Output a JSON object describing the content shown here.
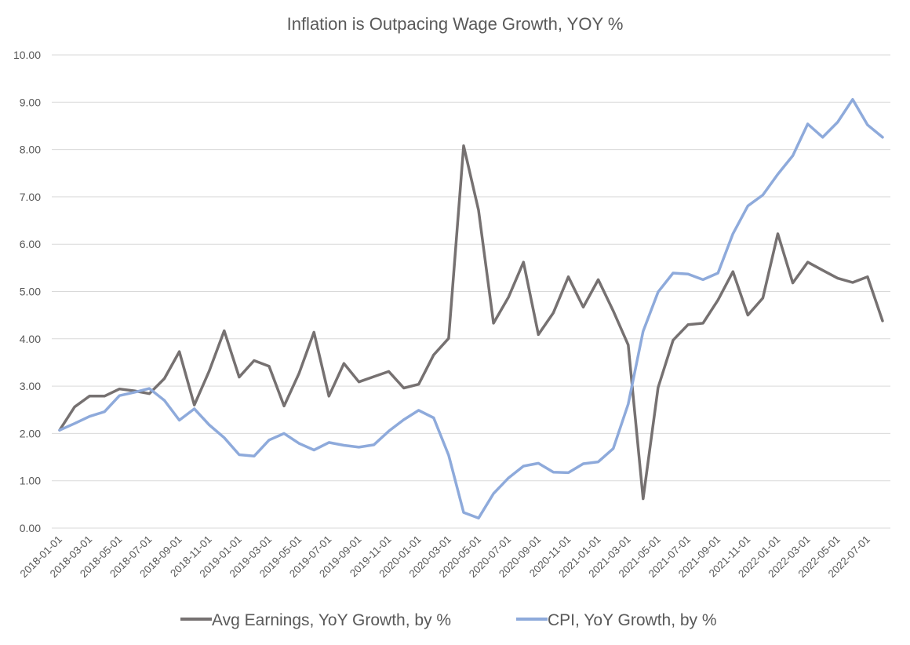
{
  "chart_data": {
    "type": "line",
    "title": "Inflation is Outpacing Wage Growth, YOY %",
    "xlabel": "",
    "ylabel": "",
    "ylim": [
      0,
      10
    ],
    "y_ticks": [
      "0.00",
      "1.00",
      "2.00",
      "3.00",
      "4.00",
      "5.00",
      "6.00",
      "7.00",
      "8.00",
      "9.00",
      "10.00"
    ],
    "grid": true,
    "legend_position": "bottom",
    "x_tick_labels": [
      "2018-01-01",
      "2018-03-01",
      "2018-05-01",
      "2018-07-01",
      "2018-09-01",
      "2018-11-01",
      "2019-01-01",
      "2019-03-01",
      "2019-05-01",
      "2019-07-01",
      "2019-09-01",
      "2019-11-01",
      "2020-01-01",
      "2020-03-01",
      "2020-05-01",
      "2020-07-01",
      "2020-09-01",
      "2020-11-01",
      "2021-01-01",
      "2021-03-01",
      "2021-05-01",
      "2021-07-01",
      "2021-09-01",
      "2021-11-01",
      "2022-01-01",
      "2022-03-01",
      "2022-05-01",
      "2022-07-01"
    ],
    "x": [
      "2018-01-01",
      "2018-02-01",
      "2018-03-01",
      "2018-04-01",
      "2018-05-01",
      "2018-06-01",
      "2018-07-01",
      "2018-08-01",
      "2018-09-01",
      "2018-10-01",
      "2018-11-01",
      "2018-12-01",
      "2019-01-01",
      "2019-02-01",
      "2019-03-01",
      "2019-04-01",
      "2019-05-01",
      "2019-06-01",
      "2019-07-01",
      "2019-08-01",
      "2019-09-01",
      "2019-10-01",
      "2019-11-01",
      "2019-12-01",
      "2020-01-01",
      "2020-02-01",
      "2020-03-01",
      "2020-04-01",
      "2020-05-01",
      "2020-06-01",
      "2020-07-01",
      "2020-08-01",
      "2020-09-01",
      "2020-10-01",
      "2020-11-01",
      "2020-12-01",
      "2021-01-01",
      "2021-02-01",
      "2021-03-01",
      "2021-04-01",
      "2021-05-01",
      "2021-06-01",
      "2021-07-01",
      "2021-08-01",
      "2021-09-01",
      "2021-10-01",
      "2021-11-01",
      "2021-12-01",
      "2022-01-01",
      "2022-02-01",
      "2022-03-01",
      "2022-04-01",
      "2022-05-01",
      "2022-06-01",
      "2022-07-01",
      "2022-08-01"
    ],
    "series": [
      {
        "name": "Avg Earnings, YoY Growth, by %",
        "color": "#767171",
        "values": [
          2.07,
          2.56,
          2.79,
          2.79,
          2.94,
          2.9,
          2.84,
          3.16,
          3.73,
          2.6,
          3.32,
          4.17,
          3.19,
          3.54,
          3.42,
          2.58,
          3.27,
          4.14,
          2.79,
          3.48,
          3.09,
          3.2,
          3.31,
          2.96,
          3.04,
          3.66,
          4.01,
          8.08,
          6.72,
          4.33,
          4.88,
          5.62,
          4.09,
          4.55,
          5.31,
          4.67,
          5.25,
          4.59,
          3.87,
          0.62,
          2.97,
          3.97,
          4.3,
          4.33,
          4.82,
          5.42,
          4.5,
          4.86,
          6.22,
          5.18,
          5.62,
          5.45,
          5.28,
          5.19,
          5.31,
          4.38
        ]
      },
      {
        "name": "CPI, YoY Growth, by %",
        "color": "#8eaadb",
        "values": [
          2.07,
          2.21,
          2.36,
          2.46,
          2.8,
          2.87,
          2.95,
          2.7,
          2.28,
          2.52,
          2.18,
          1.91,
          1.55,
          1.52,
          1.86,
          2.0,
          1.79,
          1.65,
          1.81,
          1.75,
          1.71,
          1.76,
          2.05,
          2.29,
          2.49,
          2.33,
          1.54,
          0.33,
          0.21,
          0.73,
          1.06,
          1.31,
          1.37,
          1.18,
          1.17,
          1.36,
          1.4,
          1.68,
          2.62,
          4.16,
          4.99,
          5.39,
          5.37,
          5.25,
          5.39,
          6.22,
          6.81,
          7.04,
          7.48,
          7.87,
          8.54,
          8.26,
          8.58,
          9.06,
          8.52,
          8.26
        ]
      }
    ]
  }
}
